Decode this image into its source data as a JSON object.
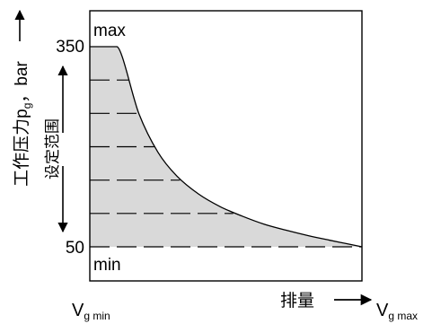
{
  "chart_data": {
    "type": "area",
    "x": [
      0,
      0.1,
      0.18,
      0.25,
      0.32,
      0.4,
      0.48,
      0.56,
      0.64,
      0.72,
      0.8,
      0.88,
      0.94,
      1.0
    ],
    "y": [
      350,
      350,
      250,
      192,
      156,
      129,
      110,
      96,
      84,
      75,
      67,
      60,
      55,
      50
    ],
    "xlim": [
      0,
      1
    ],
    "ylim": [
      50,
      350
    ],
    "y_ticks": [
      "350",
      "50"
    ],
    "settings": [
      350,
      300,
      250,
      200,
      150,
      100,
      50
    ],
    "ylabel": "工作压力p",
    "ylabel_sub": "g",
    "ylabel_unit": "，bar",
    "ylabel_range": "设定范围",
    "x_min_label": "V",
    "x_min_sub": "g min",
    "x_max_label": "V",
    "x_max_sub": "g max",
    "x_axis_label": "排量",
    "max_label": "max",
    "min_label": "min",
    "fill_color": "#d9d9d9",
    "grid": false
  }
}
